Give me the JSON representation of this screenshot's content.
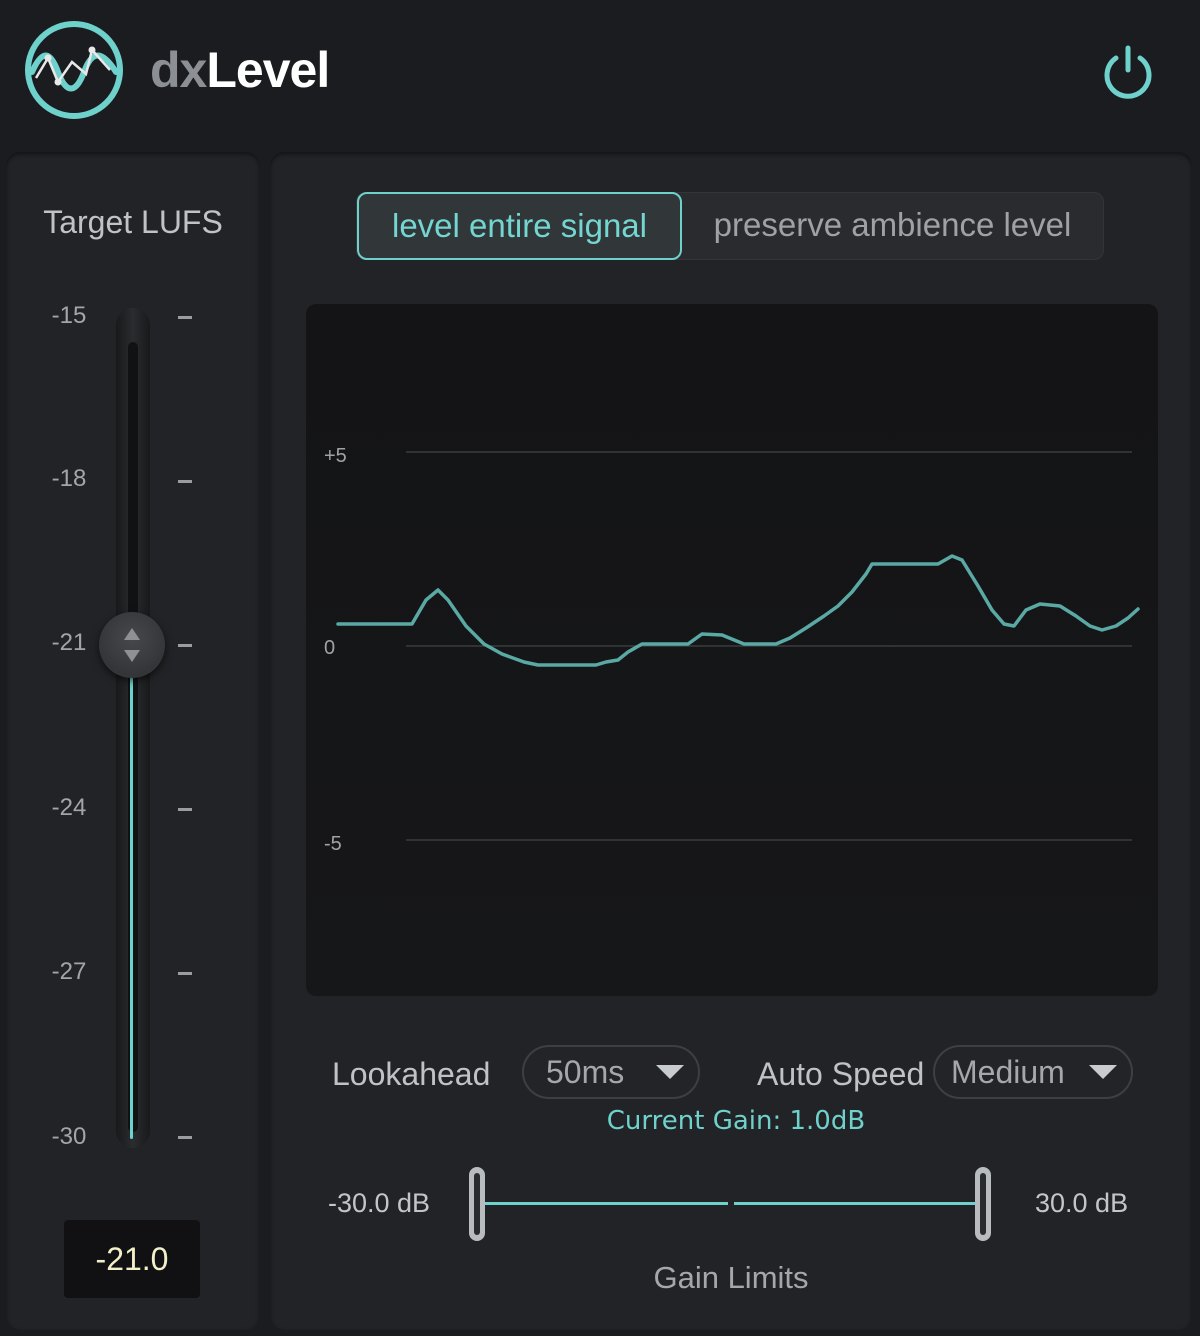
{
  "app": {
    "title_prefix": "dx",
    "title_main": "Level",
    "logo_icon": "wave-logo-icon",
    "power_icon": "power-icon",
    "accent_color": "#6fd1cc"
  },
  "target": {
    "label": "Target LUFS",
    "ticks": [
      "-15",
      "-18",
      "-21",
      "-24",
      "-27",
      "-30"
    ],
    "value": "-21.0",
    "slider_value": -21,
    "range": [
      -30,
      -15
    ]
  },
  "mode": {
    "options": [
      "level entire signal",
      "preserve ambience level"
    ],
    "selected": "level entire signal"
  },
  "graph": {
    "y_ticks": [
      "+5",
      "0",
      "-5"
    ],
    "current_gain": "Current Gain: 1.0dB"
  },
  "lookahead": {
    "label": "Lookahead",
    "value": "50ms"
  },
  "auto_speed": {
    "label": "Auto Speed",
    "value": "Medium"
  },
  "gain_limits": {
    "min_label": "-30.0 dB",
    "max_label": "30.0 dB",
    "title": "Gain Limits",
    "min": -30.0,
    "max": 30.0
  }
}
